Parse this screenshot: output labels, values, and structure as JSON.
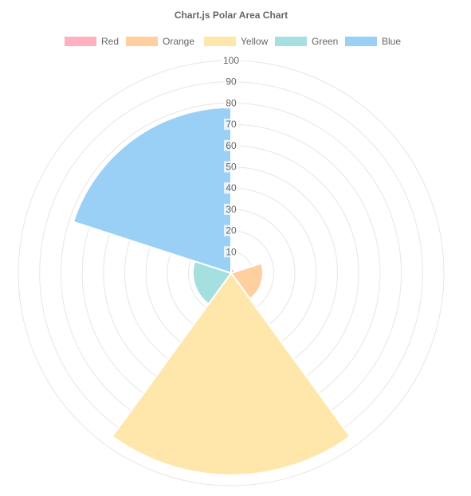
{
  "chart_data": {
    "type": "polar-area",
    "title": "Chart.js Polar Area Chart",
    "labels": [
      "Red",
      "Orange",
      "Yellow",
      "Green",
      "Blue"
    ],
    "values": [
      2,
      15,
      95,
      18,
      78
    ],
    "colors": [
      "#ffb1c1",
      "#ffcf9f",
      "#ffe6aa",
      "#a5dfdf",
      "#9ad0f5"
    ],
    "r_axis": {
      "min": 0,
      "max": 100,
      "step": 10,
      "ticks": [
        "10",
        "20",
        "30",
        "40",
        "50",
        "60",
        "70",
        "80",
        "90",
        "100"
      ]
    },
    "grid": true,
    "legend_position": "top"
  }
}
